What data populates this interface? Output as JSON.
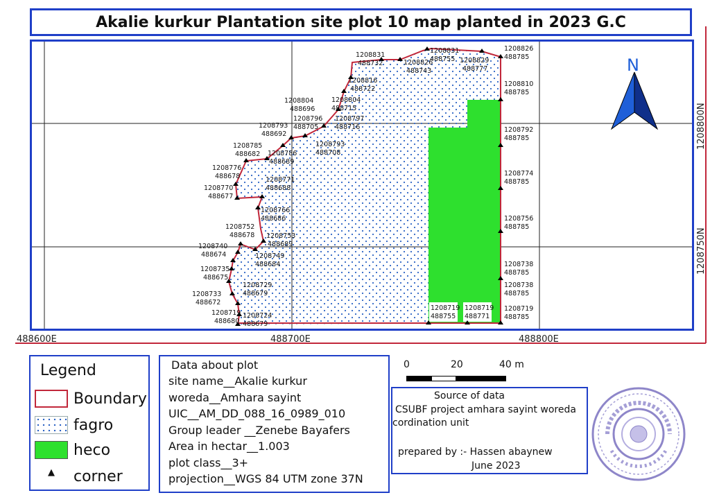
{
  "title": "Akalie kurkur Plantation site plot 10 map planted in 2023 G.C",
  "grid": {
    "x_labels": [
      "488600E",
      "488700E",
      "488800E"
    ],
    "y_labels": [
      "1208800N",
      "1208750N"
    ]
  },
  "north_arrow": {
    "label": "N",
    "icon": "north-arrow-icon"
  },
  "points": [
    {
      "n": "1208831",
      "e": "488732"
    },
    {
      "n": "1208831",
      "e": "488755"
    },
    {
      "n": "1208826",
      "e": "488743"
    },
    {
      "n": "1208829",
      "e": "488777"
    },
    {
      "n": "1208826",
      "e": "488785"
    },
    {
      "n": "1208816",
      "e": "488722"
    },
    {
      "n": "1208810",
      "e": "488785"
    },
    {
      "n": "1208804",
      "e": "488696"
    },
    {
      "n": "1208804",
      "e": "488715"
    },
    {
      "n": "1208796",
      "e": "488705"
    },
    {
      "n": "1208797",
      "e": "488716"
    },
    {
      "n": "1208793",
      "e": "488692"
    },
    {
      "n": "1208792",
      "e": "488785"
    },
    {
      "n": "1208793",
      "e": "488708"
    },
    {
      "n": "1208785",
      "e": "488682"
    },
    {
      "n": "1208786",
      "e": "488689"
    },
    {
      "n": "1208776",
      "e": "488678"
    },
    {
      "n": "1208774",
      "e": "488785"
    },
    {
      "n": "1208771",
      "e": "488688"
    },
    {
      "n": "1208770",
      "e": "488677"
    },
    {
      "n": "1208766",
      "e": "488686"
    },
    {
      "n": "1208756",
      "e": "488785"
    },
    {
      "n": "1208752",
      "e": "488678"
    },
    {
      "n": "1208753",
      "e": "488689"
    },
    {
      "n": "1208740",
      "e": "488674"
    },
    {
      "n": "1208749",
      "e": "488684"
    },
    {
      "n": "1208738",
      "e": "488785"
    },
    {
      "n": "1208735",
      "e": "488675"
    },
    {
      "n": "1208738",
      "e": "488785"
    },
    {
      "n": "1208729",
      "e": "488679"
    },
    {
      "n": "1208733",
      "e": "488672"
    },
    {
      "n": "1208719",
      "e": "488680"
    },
    {
      "n": "1208724",
      "e": "488679"
    },
    {
      "n": "1208719",
      "e": "488755"
    },
    {
      "n": "1208719",
      "e": "488771"
    },
    {
      "n": "1208719",
      "e": "488785"
    }
  ],
  "legend": {
    "title": "Legend",
    "items": [
      {
        "label": "Boundary",
        "color": "#c1273a"
      },
      {
        "label": "fagro",
        "color": "#2b63c4"
      },
      {
        "label": "heco",
        "color": "#2ee02e"
      },
      {
        "label": "corner",
        "color": "#000000"
      }
    ]
  },
  "info": {
    "heading": "Data about plot",
    "lines": [
      "site name__Akalie kurkur",
      "woreda__Amhara sayint",
      "UIC__AM_DD_088_16_0989_010",
      "Group leader __Zenebe Bayafers",
      "Area in hectar__1.003",
      "plot class__3+",
      "projection__WGS 84 UTM zone 37N"
    ]
  },
  "scale": {
    "labels": [
      "0",
      "20",
      "40 m"
    ]
  },
  "source": {
    "heading": "Source of data",
    "line1": "CSUBF project amhara sayint woreda",
    "line2": "cordination unit",
    "prepared": "prepared by :- Hassen abaynew",
    "date": "June 2023"
  },
  "colors": {
    "frame": "#1f3fc8",
    "boundary": "#c1273a",
    "heco": "#2ee02e",
    "fagro_dots": "#2b63c4",
    "arrow": "#1f5fd8"
  }
}
